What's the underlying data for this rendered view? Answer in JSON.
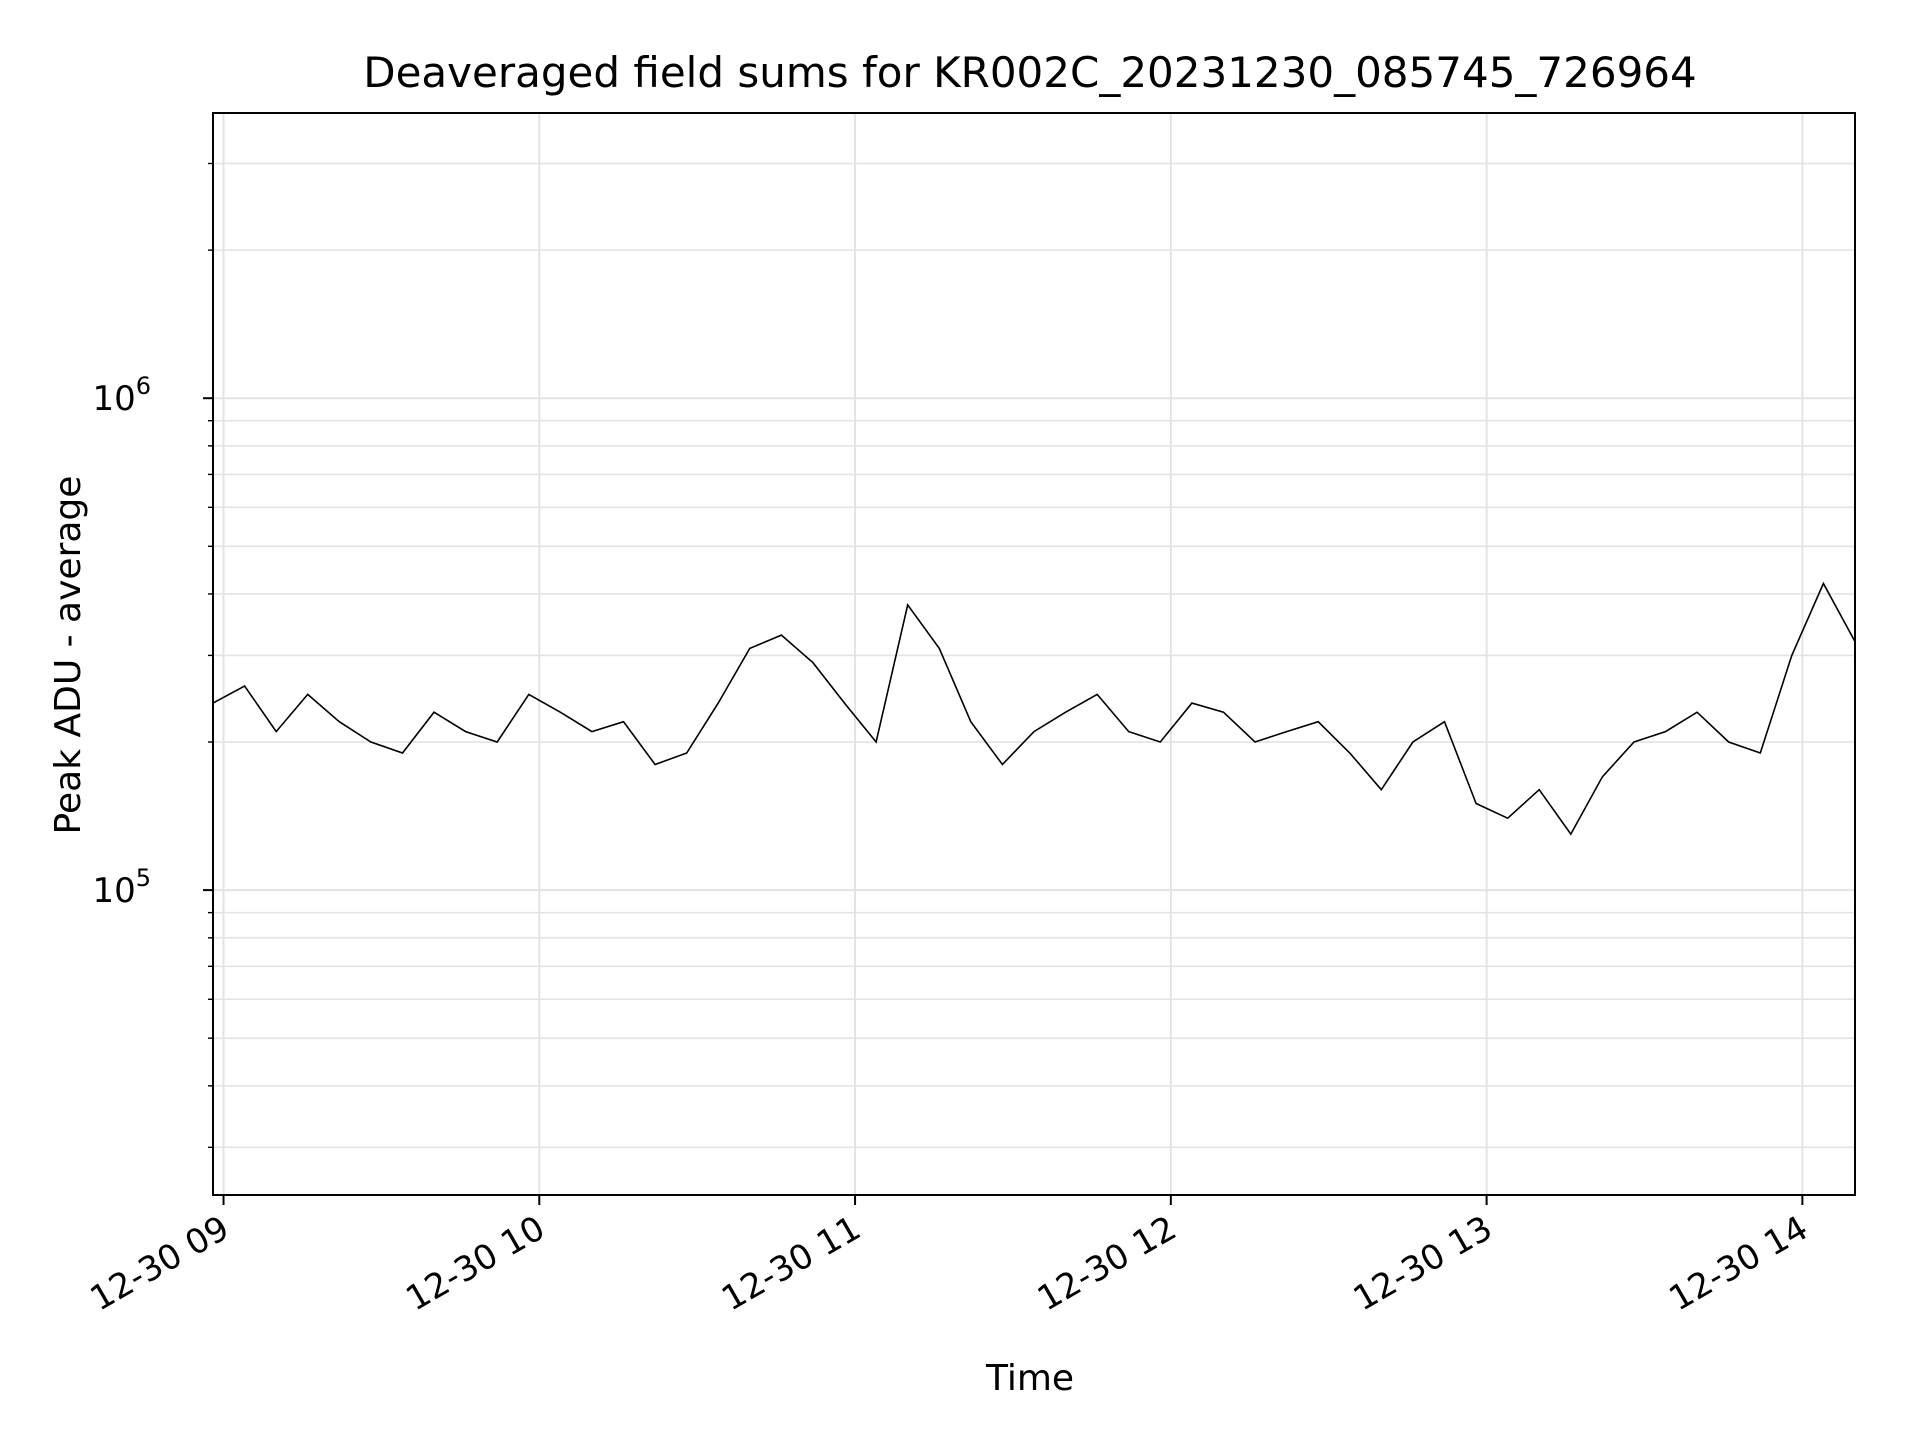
{
  "chart_data": {
    "type": "line",
    "title": "Deaveraged field sums for KR002C_20231230_085745_726964",
    "xlabel": "Time",
    "ylabel": "Peak ADU - average",
    "yscale": "log",
    "ylim": [
      24000,
      3800000
    ],
    "xlim": [
      "2023-12-30 08:58",
      "2023-12-30 14:10"
    ],
    "x_ticks": [
      "12-30 09",
      "12-30 10",
      "12-30 11",
      "12-30 12",
      "12-30 13",
      "12-30 14"
    ],
    "x_tick_times": [
      "2023-12-30 09:00",
      "2023-12-30 10:00",
      "2023-12-30 11:00",
      "2023-12-30 12:00",
      "2023-12-30 13:00",
      "2023-12-30 14:00"
    ],
    "y_ticks": [
      {
        "base": "10",
        "exp": "5",
        "value": 100000
      },
      {
        "base": "10",
        "exp": "6",
        "value": 1000000
      }
    ],
    "grid": true,
    "line_color": "#000000",
    "series": [
      {
        "x": [
          "2023-12-30 08:58",
          "2023-12-30 09:04",
          "2023-12-30 09:10",
          "2023-12-30 09:16",
          "2023-12-30 09:22",
          "2023-12-30 09:28",
          "2023-12-30 09:34",
          "2023-12-30 09:40",
          "2023-12-30 09:46",
          "2023-12-30 09:52",
          "2023-12-30 09:58",
          "2023-12-30 10:04",
          "2023-12-30 10:10",
          "2023-12-30 10:16",
          "2023-12-30 10:22",
          "2023-12-30 10:28",
          "2023-12-30 10:34",
          "2023-12-30 10:40",
          "2023-12-30 10:46",
          "2023-12-30 10:52",
          "2023-12-30 10:58",
          "2023-12-30 11:04",
          "2023-12-30 11:10",
          "2023-12-30 11:16",
          "2023-12-30 11:22",
          "2023-12-30 11:28",
          "2023-12-30 11:34",
          "2023-12-30 11:40",
          "2023-12-30 11:46",
          "2023-12-30 11:52",
          "2023-12-30 11:58",
          "2023-12-30 12:04",
          "2023-12-30 12:10",
          "2023-12-30 12:16",
          "2023-12-30 12:22",
          "2023-12-30 12:28",
          "2023-12-30 12:34",
          "2023-12-30 12:40",
          "2023-12-30 12:46",
          "2023-12-30 12:52",
          "2023-12-30 12:58",
          "2023-12-30 13:04",
          "2023-12-30 13:10",
          "2023-12-30 13:16",
          "2023-12-30 13:22",
          "2023-12-30 13:28",
          "2023-12-30 13:34",
          "2023-12-30 13:40",
          "2023-12-30 13:46",
          "2023-12-30 13:52",
          "2023-12-30 13:58",
          "2023-12-30 14:04",
          "2023-12-30 14:10"
        ],
        "y": [
          240000,
          260000,
          210000,
          250000,
          220000,
          200000,
          190000,
          230000,
          210000,
          200000,
          250000,
          230000,
          210000,
          220000,
          180000,
          190000,
          240000,
          310000,
          330000,
          290000,
          240000,
          200000,
          380000,
          310000,
          220000,
          180000,
          210000,
          230000,
          250000,
          210000,
          200000,
          240000,
          230000,
          200000,
          210000,
          220000,
          190000,
          160000,
          200000,
          220000,
          150000,
          140000,
          160000,
          130000,
          170000,
          200000,
          210000,
          230000,
          200000,
          190000,
          300000,
          420000,
          320000
        ]
      }
    ]
  }
}
